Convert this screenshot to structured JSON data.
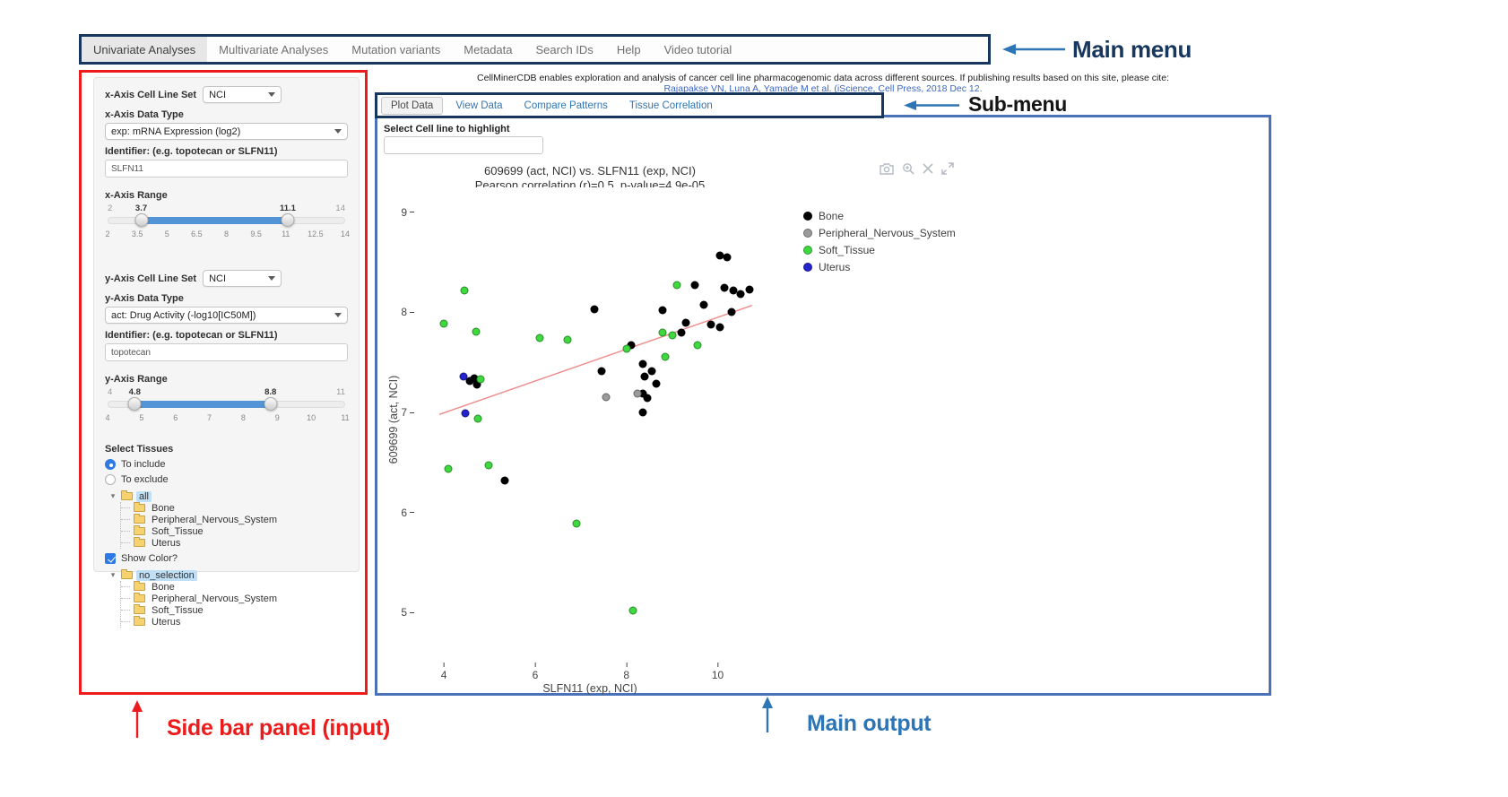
{
  "annotations": {
    "main_menu_label": "Main menu",
    "sub_menu_label": "Sub-menu",
    "sidebar_label": "Side bar panel (input)",
    "main_output_label": "Main output"
  },
  "main_menu": {
    "items": [
      "Univariate Analyses",
      "Multivariate Analyses",
      "Mutation variants",
      "Metadata",
      "Search IDs",
      "Help",
      "Video tutorial"
    ],
    "active": "Univariate Analyses"
  },
  "header": {
    "citation_text": "CellMinerCDB enables exploration and analysis of cancer cell line pharmacogenomic data across different sources. If publishing results based on this site, please cite:",
    "citation_link": "Rajapakse VN, Luna A, Yamade M et al. (iScience, Cell Press, 2018 Dec 12."
  },
  "submenu": {
    "tabs": [
      "Plot Data",
      "View Data",
      "Compare Patterns",
      "Tissue Correlation"
    ],
    "active": "Plot Data"
  },
  "sidebar": {
    "x_axis": {
      "cell_line_set_label": "x-Axis Cell Line Set",
      "cell_line_set_value": "NCI",
      "data_type_label": "x-Axis Data Type",
      "data_type_value": "exp: mRNA Expression (log2)",
      "identifier_label": "Identifier: (e.g. topotecan or SLFN11)",
      "identifier_value": "SLFN11",
      "range_label": "x-Axis Range",
      "range": {
        "min": 2,
        "max": 14,
        "from": 3.7,
        "to": 11.1,
        "ticks": [
          2,
          3.5,
          5,
          6.5,
          8,
          9.5,
          11,
          12.5,
          14
        ]
      }
    },
    "y_axis": {
      "cell_line_set_label": "y-Axis Cell Line Set",
      "cell_line_set_value": "NCI",
      "data_type_label": "y-Axis Data Type",
      "data_type_value": "act: Drug Activity (-log10[IC50M])",
      "identifier_label": "Identifier: (e.g. topotecan or SLFN11)",
      "identifier_value": "topotecan",
      "range_label": "y-Axis Range",
      "range": {
        "min": 4,
        "max": 11,
        "from": 4.8,
        "to": 8.8,
        "ticks": [
          4,
          5,
          6,
          7,
          8,
          9,
          10,
          11
        ]
      }
    },
    "select_tissues_label": "Select Tissues",
    "include_option": "To include",
    "exclude_option": "To exclude",
    "tissue_tree": {
      "root": "all",
      "items": [
        "Bone",
        "Peripheral_Nervous_System",
        "Soft_Tissue",
        "Uterus"
      ]
    },
    "show_color_label": "Show Color?",
    "color_tree": {
      "root": "no_selection",
      "items": [
        "Bone",
        "Peripheral_Nervous_System",
        "Soft_Tissue",
        "Uterus"
      ]
    }
  },
  "main_output": {
    "highlight_label": "Select Cell line to highlight",
    "highlight_value": ""
  },
  "chart_data": {
    "type": "scatter",
    "title": "609699 (act, NCI) vs. SLFN11 (exp, NCI)",
    "subtitle": "Pearson correlation (r)=0.5, p-value=4.9e-05",
    "xlabel": "SLFN11 (exp, NCI)",
    "ylabel": "609699 (act, NCI)",
    "xlim": [
      3.35,
      11.05
    ],
    "ylim": [
      4.5,
      9.25
    ],
    "xticks": [
      4,
      6,
      8,
      10
    ],
    "yticks": [
      5,
      6,
      7,
      8,
      9
    ],
    "grid": false,
    "legend_position": "right",
    "trendline": {
      "x1": 3.9,
      "y1": 6.98,
      "x2": 10.75,
      "y2": 8.07,
      "color": "#ef8a8a"
    },
    "series": [
      {
        "name": "Bone",
        "color": "#000000",
        "points": [
          [
            10.05,
            8.57
          ],
          [
            10.2,
            8.55
          ],
          [
            10.15,
            8.25
          ],
          [
            10.35,
            8.22
          ],
          [
            10.5,
            8.18
          ],
          [
            10.7,
            8.23
          ],
          [
            9.5,
            8.27
          ],
          [
            7.3,
            8.03
          ],
          [
            8.8,
            8.02
          ],
          [
            9.7,
            8.08
          ],
          [
            9.3,
            7.9
          ],
          [
            9.85,
            7.88
          ],
          [
            10.05,
            7.85
          ],
          [
            10.3,
            8.0
          ],
          [
            9.2,
            7.8
          ],
          [
            8.1,
            7.67
          ],
          [
            8.35,
            7.48
          ],
          [
            8.55,
            7.41
          ],
          [
            8.4,
            7.36
          ],
          [
            8.65,
            7.29
          ],
          [
            8.35,
            7.19
          ],
          [
            8.45,
            7.14
          ],
          [
            8.35,
            7.0
          ],
          [
            7.45,
            7.41
          ],
          [
            4.66,
            7.34
          ],
          [
            4.57,
            7.31
          ],
          [
            4.72,
            7.28
          ],
          [
            5.33,
            6.32
          ]
        ]
      },
      {
        "name": "Peripheral_Nervous_System",
        "color": "#9b9b9b",
        "points": [
          [
            7.55,
            7.15
          ],
          [
            8.25,
            7.19
          ]
        ]
      },
      {
        "name": "Soft_Tissue",
        "color": "#3fd83f",
        "points": [
          [
            4.45,
            8.22
          ],
          [
            4.0,
            7.89
          ],
          [
            4.7,
            7.81
          ],
          [
            6.1,
            7.74
          ],
          [
            6.7,
            7.73
          ],
          [
            9.1,
            8.27
          ],
          [
            8.8,
            7.8
          ],
          [
            9.0,
            7.77
          ],
          [
            9.55,
            7.67
          ],
          [
            8.0,
            7.64
          ],
          [
            8.85,
            7.56
          ],
          [
            4.8,
            7.33
          ],
          [
            4.74,
            6.94
          ],
          [
            4.98,
            6.47
          ],
          [
            4.1,
            6.44
          ],
          [
            6.9,
            5.89
          ],
          [
            8.15,
            5.02
          ]
        ]
      },
      {
        "name": "Uterus",
        "color": "#2424cc",
        "points": [
          [
            4.43,
            7.36
          ],
          [
            4.46,
            6.99
          ]
        ]
      }
    ]
  }
}
